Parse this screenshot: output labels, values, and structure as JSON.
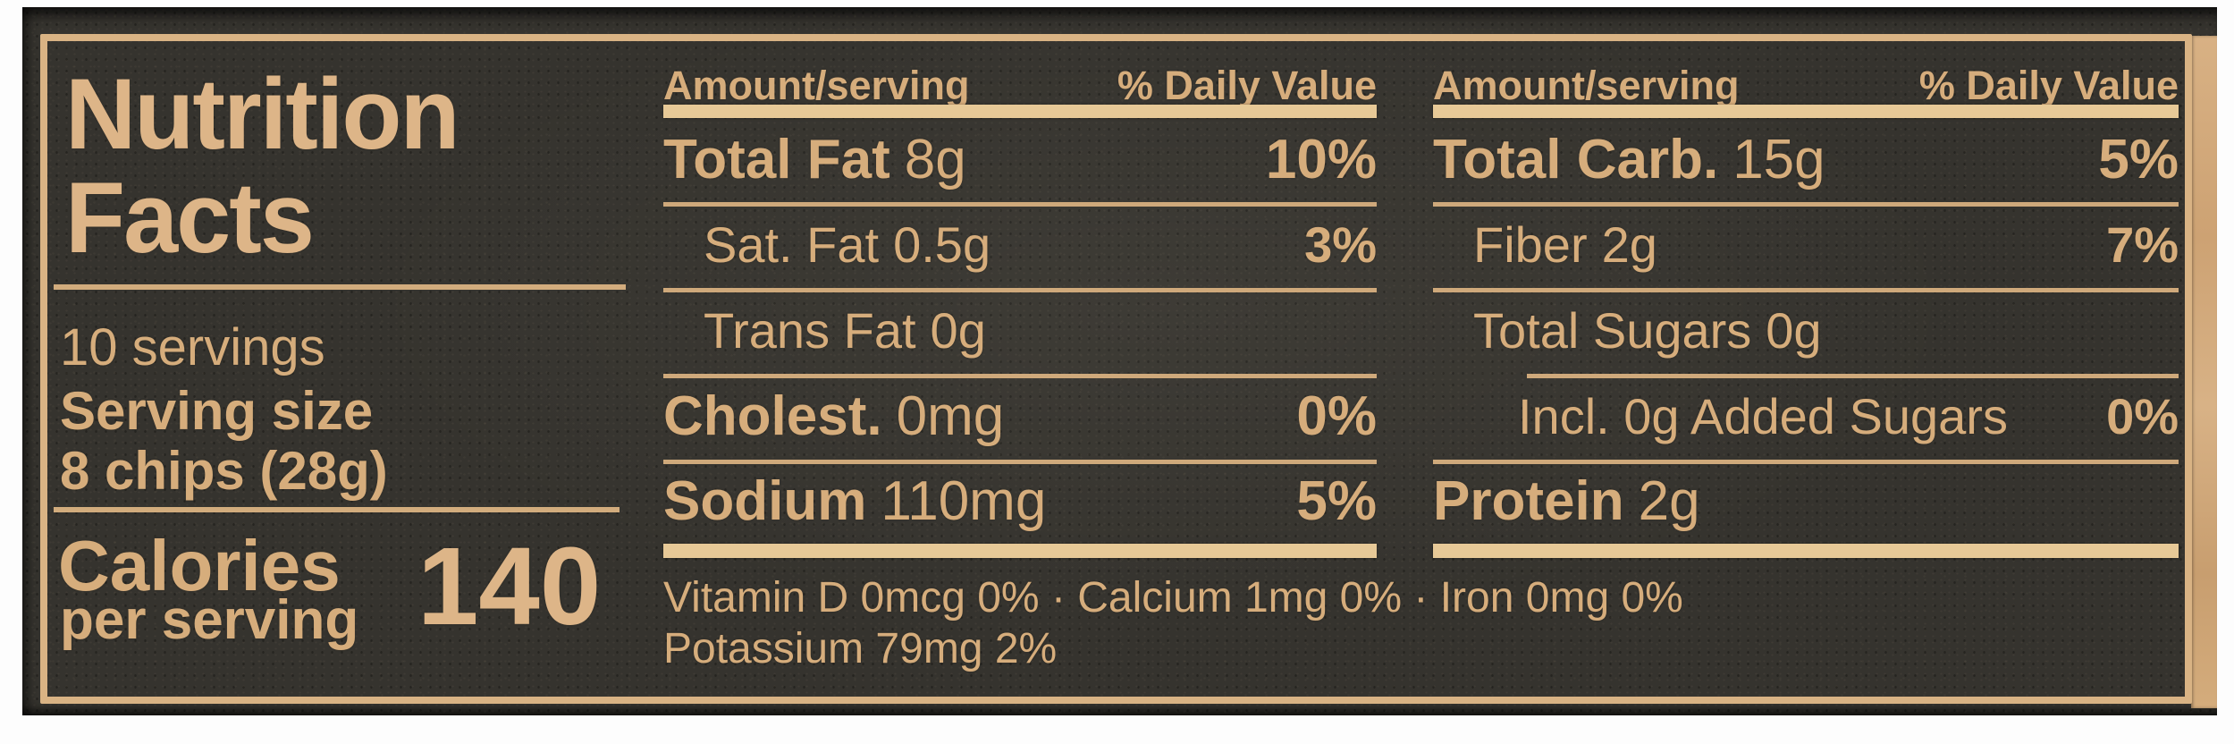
{
  "colors": {
    "package_background": "#35332e",
    "print_tan": "#d6ad7c",
    "bar_tan": "#e7c997",
    "frame_tan": "#d9b384",
    "kraft_edge": "#d2a97a",
    "photo_background": "#fdfdfd"
  },
  "panel": {
    "title_line1": "Nutrition",
    "title_line2": "Facts",
    "servings_count": "10 servings",
    "serving_size_label": "Serving size",
    "serving_size_value": "8 chips (28g)",
    "calories_label": "Calories",
    "calories_per": "per serving",
    "calories_value": "140"
  },
  "table": {
    "header_amount": "Amount/serving",
    "header_dv": "% Daily Value",
    "col1": {
      "rows": [
        {
          "name": "Total Fat",
          "amount": "8g",
          "dv": "10%"
        },
        {
          "name": "Sat. Fat",
          "amount": "0.5g",
          "dv": "3%"
        },
        {
          "name": "Trans Fat",
          "amount": "0g",
          "dv": ""
        },
        {
          "name": "Cholest.",
          "amount": "0mg",
          "dv": "0%"
        },
        {
          "name": "Sodium",
          "amount": "110mg",
          "dv": "5%"
        }
      ]
    },
    "col2": {
      "rows": [
        {
          "name": "Total Carb.",
          "amount": "15g",
          "dv": "5%"
        },
        {
          "name": "Fiber",
          "amount": "2g",
          "dv": "7%"
        },
        {
          "name": "Total Sugars",
          "amount": "0g",
          "dv": ""
        },
        {
          "name": "Incl. 0g Added Sugars",
          "amount": "",
          "dv": "0%"
        },
        {
          "name": "Protein",
          "amount": "2g",
          "dv": ""
        }
      ]
    }
  },
  "micronutrients": {
    "line1": "Vitamin D 0mcg 0% · Calcium 1mg 0% · Iron 0mg 0%",
    "line2": "Potassium 79mg 2%"
  }
}
